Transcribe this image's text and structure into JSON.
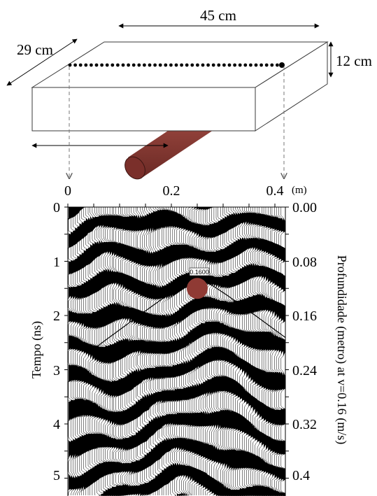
{
  "diagram": {
    "dimensions": {
      "length": "45 cm",
      "width": "29 cm",
      "height": "12 cm"
    },
    "colors": {
      "pipe": "#8a3b35",
      "pipe_dark": "#5e2420",
      "target": "#8f3a34",
      "radargram_fill": "#000000",
      "box_edge": "#3a3a3a"
    }
  },
  "radargram": {
    "top_axis": {
      "ticks": [
        "0",
        "0.2",
        "0.4"
      ],
      "unit": "(m)",
      "range": [
        0,
        0.42
      ]
    },
    "left_axis": {
      "title": "Tempo (ns)",
      "ticks": [
        "0",
        "1",
        "2",
        "3",
        "4",
        "5"
      ],
      "range": [
        0,
        5.3
      ]
    },
    "right_axis": {
      "title": "Profundidade (metro) at v=0.16 (m/s)",
      "ticks": [
        "0.00",
        "0.08",
        "0.16",
        "0.24",
        "0.32",
        "0.4"
      ]
    },
    "hyperbola_label": "0.1600",
    "target": {
      "x_m": 0.25,
      "time_ns": 1.5
    }
  }
}
